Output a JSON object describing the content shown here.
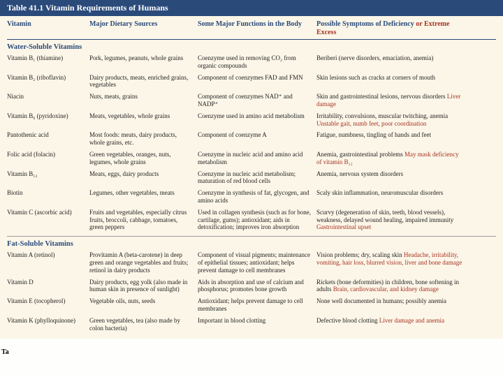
{
  "title": "Table 41.1 Vitamin Requirements of Humans",
  "side_label": "Ta",
  "headers": {
    "vitamin": "Vitamin",
    "sources": "Major Dietary Sources",
    "functions": "Some Major Functions in the Body",
    "deficiency": "Possible Symptoms of Deficiency",
    "excess_suffix": " or Extreme Excess"
  },
  "sections": [
    {
      "title": "Water-Soluble Vitamins",
      "rows": [
        {
          "vitamin": "Vitamin B₁ (thiamine)",
          "sources": "Pork, legumes, peanuts, whole grains",
          "functions": "Coenzyme used in removing CO₂ from organic compounds",
          "deficiency": "Beriberi (nerve disorders, emaciation, anemia)",
          "excess": ""
        },
        {
          "vitamin": "Vitamin B₂ (riboflavin)",
          "sources": "Dairy products, meats, enriched grains, vegetables",
          "functions": "Component of coenzymes FAD and FMN",
          "deficiency": "Skin lesions such as cracks at corners of mouth",
          "excess": ""
        },
        {
          "vitamin": "Niacin",
          "sources": "Nuts, meats, grains",
          "functions": "Component of coenzymes NAD⁺ and NADP⁺",
          "deficiency": "Skin and gastrointestinal lesions, nervous disorders",
          "excess": " Liver damage"
        },
        {
          "vitamin": "Vitamin B₆ (pyridoxine)",
          "sources": "Meats, vegetables, whole grains",
          "functions": "Coenzyme used in amino acid metabolism",
          "deficiency": "Irritability, convulsions, muscular twitching, anemia",
          "excess": " Unstable gait, numb feet, poor coordination"
        },
        {
          "vitamin": "Pantothenic acid",
          "sources": "Most foods: meats, dairy products, whole grains, etc.",
          "functions": "Component of coenzyme A",
          "deficiency": "Fatigue, numbness, tingling of hands and feet",
          "excess": ""
        },
        {
          "vitamin": "Folic acid (folacin)",
          "sources": "Green vegetables, oranges, nuts, legumes, whole grains",
          "functions": "Coenzyme in nucleic acid and amino acid metabolism",
          "deficiency": "Anemia, gastrointestinal problems",
          "excess": " May mask deficiency of vitamin B₁₂"
        },
        {
          "vitamin": "Vitamin B₁₂",
          "sources": "Meats, eggs, dairy products",
          "functions": "Coenzyme in nucleic acid metabolism; maturation of red blood cells",
          "deficiency": "Anemia, nervous system disorders",
          "excess": ""
        },
        {
          "vitamin": "Biotin",
          "sources": "Legumes, other vegetables, meats",
          "functions": "Coenzyme in synthesis of fat, glycogen, and amino acids",
          "deficiency": "Scaly skin inflammation, neuromuscular disorders",
          "excess": ""
        },
        {
          "vitamin": "Vitamin C (ascorbic acid)",
          "sources": "Fruits and vegetables, especially citrus fruits, broccoli, cabbage, tomatoes, green peppers",
          "functions": "Used in collagen synthesis (such as for bone, cartilage, gums); antioxidant; aids in detoxification; improves iron absorption",
          "deficiency": "Scurvy (degeneration of skin, teeth, blood vessels), weakness, delayed wound healing, impaired immunity",
          "excess": " Gastrointestinal upset"
        }
      ]
    },
    {
      "title": "Fat-Soluble Vitamins",
      "rows": [
        {
          "vitamin": "Vitamin A (retinol)",
          "sources": "Provitamin A (beta-carotene) in deep green and orange vegetables and fruits; retinol in dairy products",
          "functions": "Component of visual pigments; maintenance of epithelial tissues; antioxidant; helps prevent damage to cell membranes",
          "deficiency": "Vision problems; dry, scaling skin",
          "excess": " Headache, irritability, vomiting, hair loss, blurred vision, liver and bone damage"
        },
        {
          "vitamin": "Vitamin D",
          "sources": "Dairy products, egg yolk (also made in human skin in presence of sunlight)",
          "functions": "Aids in absorption and use of calcium and phosphorus; promotes bone growth",
          "deficiency": "Rickets (bone deformities) in children, bone softening in adults",
          "excess": " Brain, cardiovascular, and kidney damage"
        },
        {
          "vitamin": "Vitamin E (tocopherol)",
          "sources": "Vegetable oils, nuts, seeds",
          "functions": "Antioxidant; helps prevent damage to cell membranes",
          "deficiency": "None well documented in humans; possibly anemia",
          "excess": ""
        },
        {
          "vitamin": "Vitamin K (phylloquinone)",
          "sources": "Green vegetables, tea (also made by colon bacteria)",
          "functions": "Important in blood clotting",
          "deficiency": "Defective blood clotting",
          "excess": " Liver damage and anemia"
        }
      ]
    }
  ],
  "colors": {
    "header_bg": "#2a4a7a",
    "header_text": "#ffffff",
    "body_bg": "#fbf6e8",
    "accent_text": "#2a4a7a",
    "excess_text": "#a83020"
  }
}
